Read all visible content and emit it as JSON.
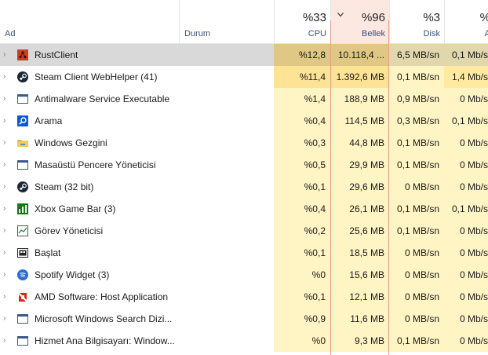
{
  "header": {
    "name": {
      "label": "Ad"
    },
    "status": {
      "label": "Durum"
    },
    "cpu": {
      "percent": "%33",
      "label": "CPU"
    },
    "memory": {
      "percent": "%96",
      "label": "Bellek"
    },
    "disk": {
      "percent": "%3",
      "label": "Disk"
    },
    "network": {
      "percent": "%",
      "label": "A"
    }
  },
  "colors": {
    "sorted_column": "#fde8e1",
    "heat_light": "#fff4c4",
    "heat_mid": "#ffeaa0",
    "heat_strong": "#fde396",
    "selected_row": "#d9d9d9"
  },
  "processes": [
    {
      "name": "RustClient",
      "icon": "rust-icon",
      "cpu": "%12,8",
      "memory": "10.118,4 ...",
      "disk": "6,5 MB/sn",
      "network": "0,1 Mb/s"
    },
    {
      "name": "Steam Client WebHelper (41)",
      "icon": "steam-icon",
      "cpu": "%11,4",
      "memory": "1.392,6 MB",
      "disk": "0,1 MB/sn",
      "network": "1,4 Mb/s"
    },
    {
      "name": "Antimalware Service Executable",
      "icon": "window-icon",
      "cpu": "%1,4",
      "memory": "188,9 MB",
      "disk": "0,9 MB/sn",
      "network": "0 Mb/s"
    },
    {
      "name": "Arama",
      "icon": "search-icon",
      "cpu": "%0,4",
      "memory": "114,5 MB",
      "disk": "0,3 MB/sn",
      "network": "0,1 Mb/s"
    },
    {
      "name": "Windows Gezgini",
      "icon": "folder-icon",
      "cpu": "%0,3",
      "memory": "44,8 MB",
      "disk": "0,1 MB/sn",
      "network": "0 Mb/s"
    },
    {
      "name": "Masaüstü Pencere Yöneticisi",
      "icon": "window-icon",
      "cpu": "%0,5",
      "memory": "29,9 MB",
      "disk": "0,1 MB/sn",
      "network": "0 Mb/s"
    },
    {
      "name": "Steam (32 bit)",
      "icon": "steam-icon",
      "cpu": "%0,1",
      "memory": "29,6 MB",
      "disk": "0 MB/sn",
      "network": "0 Mb/s"
    },
    {
      "name": "Xbox Game Bar (3)",
      "icon": "xbox-game-bar-icon",
      "cpu": "%0,4",
      "memory": "26,1 MB",
      "disk": "0,1 MB/sn",
      "network": "0,1 Mb/s"
    },
    {
      "name": "Görev Yöneticisi",
      "icon": "task-manager-icon",
      "cpu": "%0,2",
      "memory": "25,6 MB",
      "disk": "0,1 MB/sn",
      "network": "0 Mb/s"
    },
    {
      "name": "Başlat",
      "icon": "start-icon",
      "cpu": "%0,1",
      "memory": "18,5 MB",
      "disk": "0 MB/sn",
      "network": "0 Mb/s"
    },
    {
      "name": "Spotify Widget (3)",
      "icon": "spotify-icon",
      "cpu": "%0",
      "memory": "15,6 MB",
      "disk": "0 MB/sn",
      "network": "0 Mb/s"
    },
    {
      "name": "AMD Software: Host Application",
      "icon": "amd-icon",
      "cpu": "%0,1",
      "memory": "12,1 MB",
      "disk": "0 MB/sn",
      "network": "0 Mb/s"
    },
    {
      "name": "Microsoft Windows Search Dizi...",
      "icon": "window-icon",
      "cpu": "%0,9",
      "memory": "11,6 MB",
      "disk": "0 MB/sn",
      "network": "0 Mb/s"
    },
    {
      "name": "Hizmet Ana Bilgisayarı: Window...",
      "icon": "window-icon",
      "cpu": "%0",
      "memory": "9,3 MB",
      "disk": "0,1 MB/sn",
      "network": "0 Mb/s"
    }
  ]
}
